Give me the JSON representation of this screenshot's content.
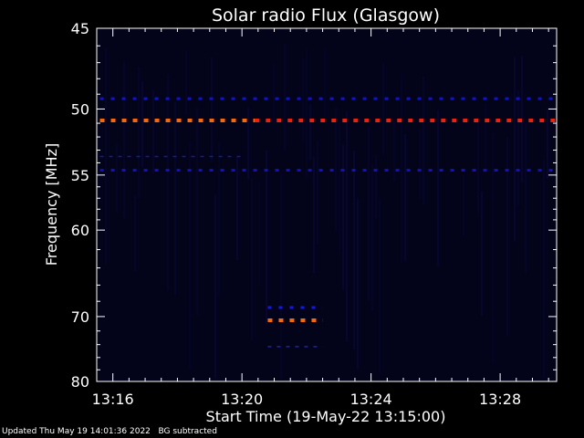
{
  "chart_data": {
    "type": "heatmap",
    "title": "Solar radio Flux (Glasgow)",
    "xlabel": "Start Time (19-May-22 13:15:00)",
    "ylabel": "Frequency [MHz]",
    "x_ticks": [
      "13:16",
      "13:20",
      "13:24",
      "13:28"
    ],
    "x_tick_minutes": [
      1,
      5,
      9,
      13
    ],
    "x_range_minutes": [
      0.5,
      14.75
    ],
    "y_ticks": [
      45,
      50,
      55,
      60,
      70,
      80
    ],
    "y_range": [
      45,
      80
    ],
    "y_scale": "reciprocal",
    "grid": false,
    "emission_bands": [
      {
        "freq": 49.3,
        "t_start": 0.6,
        "t_end": 14.7,
        "level": "low",
        "color": "#1010dd"
      },
      {
        "freq": 50.8,
        "t_start": 0.6,
        "t_end": 5.4,
        "level": "high",
        "color": "#ff6600"
      },
      {
        "freq": 50.8,
        "t_start": 5.4,
        "t_end": 14.7,
        "level": "very-high",
        "color": "#ff1a00"
      },
      {
        "freq": 53.5,
        "t_start": 0.6,
        "t_end": 5.0,
        "level": "very-low",
        "color": "#1a1a99"
      },
      {
        "freq": 54.6,
        "t_start": 0.6,
        "t_end": 14.7,
        "level": "low",
        "color": "#1010cc"
      },
      {
        "freq": 68.8,
        "t_start": 5.8,
        "t_end": 7.5,
        "level": "low",
        "color": "#1515ee"
      },
      {
        "freq": 70.5,
        "t_start": 5.8,
        "t_end": 7.5,
        "level": "high",
        "color": "#ff6600"
      },
      {
        "freq": 74.3,
        "t_start": 5.8,
        "t_end": 7.5,
        "level": "very-low",
        "color": "#2222aa"
      }
    ]
  },
  "footer": {
    "updated": "Updated Thu May 19 14:01:36 2022",
    "note": "BG subtracted"
  },
  "colors": {
    "background": "#000000",
    "plot_background": "#03031a",
    "axis": "#ffffff"
  }
}
